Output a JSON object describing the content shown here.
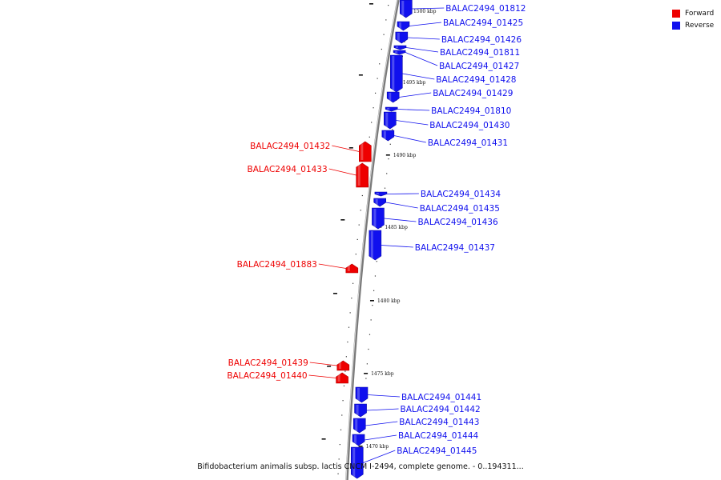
{
  "diagram": {
    "caption": "Bifidobacterium animalis subsp. lactis CNCM I-2494, complete genome. - 0..194311...",
    "colors": {
      "forward": "#ee0000",
      "reverse": "#1010ee",
      "backbone": "#888888"
    }
  },
  "legend": [
    {
      "label": "Forward",
      "color": "#ee0000"
    },
    {
      "label": "Reverse",
      "color": "#1010ee"
    }
  ],
  "ticks": [
    "1500 kbp",
    "1495 kbp",
    "1490 kbp",
    "1485 kbp",
    "1480 kbp",
    "1475 kbp",
    "1470 kbp"
  ],
  "genes": [
    {
      "name": "BALAC2494_01812",
      "strand": "reverse"
    },
    {
      "name": "BALAC2494_01425",
      "strand": "reverse"
    },
    {
      "name": "BALAC2494_01426",
      "strand": "reverse"
    },
    {
      "name": "BALAC2494_01811",
      "strand": "reverse"
    },
    {
      "name": "BALAC2494_01427",
      "strand": "reverse"
    },
    {
      "name": "BALAC2494_01428",
      "strand": "reverse"
    },
    {
      "name": "BALAC2494_01429",
      "strand": "reverse"
    },
    {
      "name": "BALAC2494_01810",
      "strand": "reverse"
    },
    {
      "name": "BALAC2494_01430",
      "strand": "reverse"
    },
    {
      "name": "BALAC2494_01431",
      "strand": "reverse"
    },
    {
      "name": "BALAC2494_01432",
      "strand": "forward"
    },
    {
      "name": "BALAC2494_01433",
      "strand": "forward"
    },
    {
      "name": "BALAC2494_01434",
      "strand": "reverse"
    },
    {
      "name": "BALAC2494_01435",
      "strand": "reverse"
    },
    {
      "name": "BALAC2494_01436",
      "strand": "reverse"
    },
    {
      "name": "BALAC2494_01437",
      "strand": "reverse"
    },
    {
      "name": "BALAC2494_01883",
      "strand": "forward"
    },
    {
      "name": "BALAC2494_01439",
      "strand": "forward"
    },
    {
      "name": "BALAC2494_01440",
      "strand": "forward"
    },
    {
      "name": "BALAC2494_01441",
      "strand": "reverse"
    },
    {
      "name": "BALAC2494_01442",
      "strand": "reverse"
    },
    {
      "name": "BALAC2494_01443",
      "strand": "reverse"
    },
    {
      "name": "BALAC2494_01444",
      "strand": "reverse"
    },
    {
      "name": "BALAC2494_01445",
      "strand": "reverse"
    }
  ]
}
